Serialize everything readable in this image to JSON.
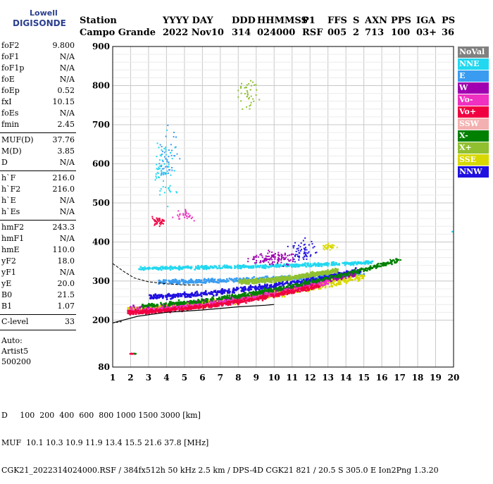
{
  "logo": {
    "line1": "Lowell",
    "line2": "DIGISONDE"
  },
  "header": {
    "row1": [
      "Station",
      "YYYY DAY",
      "DDD",
      "HHMMSS",
      "P1",
      "FFS",
      "S",
      "AXN",
      "PPS",
      "IGA",
      "PS"
    ],
    "row2": [
      "Campo Grande",
      "2022 Nov10",
      "314",
      "024000",
      "RSF",
      "005",
      "2",
      "713",
      "100",
      "03+",
      "36"
    ]
  },
  "params": [
    {
      "k": "foF2",
      "v": "9.800"
    },
    {
      "k": "foF1",
      "v": "N/A"
    },
    {
      "k": "foF1p",
      "v": "N/A"
    },
    {
      "k": "foE",
      "v": "N/A"
    },
    {
      "k": "foEp",
      "v": "0.52"
    },
    {
      "k": "fxI",
      "v": "10.15"
    },
    {
      "k": "foEs",
      "v": "N/A"
    },
    {
      "k": "fmin",
      "v": "2.45"
    },
    {
      "k": "MUF(D)",
      "v": "37.76"
    },
    {
      "k": "M(D)",
      "v": "3.85"
    },
    {
      "k": "D",
      "v": "N/A"
    },
    {
      "k": "h`F",
      "v": "216.0"
    },
    {
      "k": "h`F2",
      "v": "216.0"
    },
    {
      "k": "h`E",
      "v": "N/A"
    },
    {
      "k": "h`Es",
      "v": "N/A"
    },
    {
      "k": "hmF2",
      "v": "243.3"
    },
    {
      "k": "hmF1",
      "v": "N/A"
    },
    {
      "k": "hmE",
      "v": "110.0"
    },
    {
      "k": "yF2",
      "v": "18.0"
    },
    {
      "k": "yF1",
      "v": "N/A"
    },
    {
      "k": "yE",
      "v": "20.0"
    },
    {
      "k": "B0",
      "v": "21.5"
    },
    {
      "k": "B1",
      "v": "1.07"
    },
    {
      "k": "C-level",
      "v": "33"
    }
  ],
  "auto": [
    "Auto:",
    "Artist5",
    "500200"
  ],
  "legend": [
    {
      "label": "NoVal",
      "color": "#808080"
    },
    {
      "label": "NNE",
      "color": "#22d8f0"
    },
    {
      "label": "E",
      "color": "#3a9cf0"
    },
    {
      "label": "W",
      "color": "#a000b0"
    },
    {
      "label": "Vo-",
      "color": "#f030c0"
    },
    {
      "label": "Vo+",
      "color": "#f00040"
    },
    {
      "label": "SSW",
      "color": "#f4b0b0"
    },
    {
      "label": "X-",
      "color": "#008000"
    },
    {
      "label": "X+",
      "color": "#90c030"
    },
    {
      "label": "SSE",
      "color": "#d8d800"
    },
    {
      "label": "NNW",
      "color": "#2010e0"
    }
  ],
  "footer": {
    "line1": "D     100  200  400  600  800 1000 1500 3000 [km]",
    "line2": "MUF  10.1 10.3 10.9 11.9 13.4 15.5 21.6 37.8 [MHz]",
    "line3": "CGK21_2022314024000.RSF / 384fx512h 50 kHz 2.5 km / DPS-4D CGK21 821 / 20.5 S 305.0 E Ion2Png 1.3.20"
  },
  "chart_data": {
    "type": "scatter",
    "title": "",
    "xlabel": "",
    "ylabel": "",
    "xlim": [
      1,
      20
    ],
    "ylim": [
      80,
      900
    ],
    "xticks": [
      1,
      2,
      3,
      4,
      5,
      6,
      7,
      8,
      9,
      10,
      11,
      12,
      13,
      14,
      15,
      16,
      17,
      18,
      19,
      20
    ],
    "yticks": [
      80,
      200,
      300,
      400,
      500,
      600,
      700,
      800,
      900
    ],
    "grid": true,
    "legend_placement": "right",
    "bands": [
      {
        "name": "NNE",
        "f0": 2.4,
        "f1": 15.5,
        "h0": 335,
        "h1": 350,
        "spread": 6
      },
      {
        "name": "E",
        "f0": 3.5,
        "f1": 15.0,
        "h0": 300,
        "h1": 320,
        "spread": 8
      },
      {
        "name": "NNW",
        "f0": 3.0,
        "f1": 14.8,
        "h0": 262,
        "h1": 330,
        "spread": 10
      },
      {
        "name": "W",
        "f0": 1.8,
        "f1": 14.5,
        "h0": 232,
        "h1": 320,
        "spread": 9
      },
      {
        "name": "SSE",
        "f0": 1.8,
        "f1": 15.0,
        "h0": 228,
        "h1": 315,
        "spread": 12
      },
      {
        "name": "Vo-",
        "f0": 1.8,
        "f1": 13.0,
        "h0": 226,
        "h1": 300,
        "spread": 9
      },
      {
        "name": "Vo+",
        "f0": 1.8,
        "f1": 12.5,
        "h0": 222,
        "h1": 290,
        "spread": 8
      },
      {
        "name": "X-",
        "f0": 2.5,
        "f1": 16.8,
        "h0": 240,
        "h1": 355,
        "spread": 8
      },
      {
        "name": "X+",
        "f0": 8.0,
        "f1": 13.5,
        "h0": 300,
        "h1": 330,
        "spread": 8
      }
    ],
    "clusters": [
      {
        "name": "NNE",
        "f": 3.8,
        "h": 600,
        "df": 0.9,
        "dh": 120,
        "n": 70
      },
      {
        "name": "E",
        "f": 4.0,
        "h": 620,
        "df": 0.9,
        "dh": 100,
        "n": 40
      },
      {
        "name": "Vo+",
        "f": 3.5,
        "h": 455,
        "df": 0.6,
        "dh": 15,
        "n": 40
      },
      {
        "name": "Vo-",
        "f": 5.0,
        "h": 470,
        "df": 0.8,
        "dh": 20,
        "n": 30
      },
      {
        "name": "X+",
        "f": 8.5,
        "h": 780,
        "df": 0.8,
        "dh": 60,
        "n": 40
      },
      {
        "name": "W",
        "f": 10.0,
        "h": 360,
        "df": 2.0,
        "dh": 25,
        "n": 120
      },
      {
        "name": "NNW",
        "f": 11.5,
        "h": 380,
        "df": 1.0,
        "dh": 40,
        "n": 60
      },
      {
        "name": "SSE",
        "f": 13.0,
        "h": 390,
        "df": 0.6,
        "dh": 12,
        "n": 40
      },
      {
        "name": "X-",
        "f": 16.8,
        "h": 355,
        "df": 0.6,
        "dh": 5,
        "n": 8
      },
      {
        "name": "Vo+",
        "f": 2.0,
        "h": 116,
        "df": 0.3,
        "dh": 2,
        "n": 12
      },
      {
        "name": "X-",
        "f": 2.2,
        "h": 116,
        "df": 0.2,
        "dh": 2,
        "n": 6
      },
      {
        "name": "NNE",
        "f": 19.9,
        "h": 428,
        "df": 0.05,
        "dh": 2,
        "n": 2
      }
    ],
    "profile": {
      "upper": [
        [
          1,
          345
        ],
        [
          1.6,
          325
        ],
        [
          2.2,
          308
        ],
        [
          3,
          298
        ],
        [
          4,
          293
        ],
        [
          5,
          290
        ],
        [
          6,
          290
        ]
      ],
      "lower": [
        [
          1,
          193
        ],
        [
          2.4,
          210
        ],
        [
          4,
          220
        ],
        [
          6,
          226
        ],
        [
          8,
          234
        ],
        [
          9.5,
          238
        ],
        [
          10,
          240
        ]
      ]
    }
  }
}
